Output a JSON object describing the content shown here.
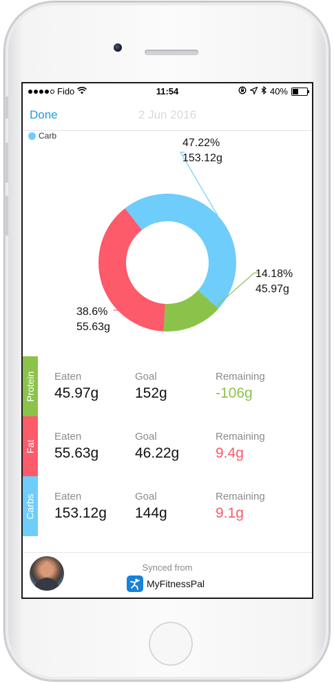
{
  "status": {
    "carrier": "Fido",
    "time": "11:54",
    "battery": "40%"
  },
  "nav": {
    "done_label": "Done",
    "date": "2 Jun 2016"
  },
  "legend": {
    "label": "Carb",
    "color": "#6ecdfb"
  },
  "chart_data": {
    "type": "pie",
    "style": "donut",
    "slices": [
      {
        "name": "Carbs",
        "percent": 47.22,
        "percent_label": "47.22%",
        "grams_label": "153.12g",
        "color": "#6ecdfb"
      },
      {
        "name": "Protein",
        "percent": 14.18,
        "percent_label": "14.18%",
        "grams_label": "45.97g",
        "color": "#8bc34a"
      },
      {
        "name": "Fat",
        "percent": 38.6,
        "percent_label": "38.6%",
        "grams_label": "55.63g",
        "color": "#fd5a6a"
      }
    ]
  },
  "macros": [
    {
      "name": "Protein",
      "color": "#8bc34a",
      "eaten_label": "Eaten",
      "eaten": "45.97g",
      "goal_label": "Goal",
      "goal": "152g",
      "remaining_label": "Remaining",
      "remaining": "-106g",
      "remaining_color": "#8bc34a"
    },
    {
      "name": "Fat",
      "color": "#fd5a6a",
      "eaten_label": "Eaten",
      "eaten": "55.63g",
      "goal_label": "Goal",
      "goal": "46.22g",
      "remaining_label": "Remaining",
      "remaining": "9.4g",
      "remaining_color": "#fd5a6a"
    },
    {
      "name": "Carbs",
      "color": "#6ecdfb",
      "eaten_label": "Eaten",
      "eaten": "153.12g",
      "goal_label": "Goal",
      "goal": "144g",
      "remaining_label": "Remaining",
      "remaining": "9.1g",
      "remaining_color": "#fd5a6a"
    }
  ],
  "footer": {
    "synced_label": "Synced from",
    "source": "MyFitnessPal"
  },
  "icons": {
    "wifi": "wifi-icon",
    "location": "location-arrow-icon",
    "bluetooth": "bluetooth-icon",
    "lock": "rotation-lock-icon",
    "battery": "battery-icon",
    "mfp": "myfitnesspal-logo-icon"
  }
}
